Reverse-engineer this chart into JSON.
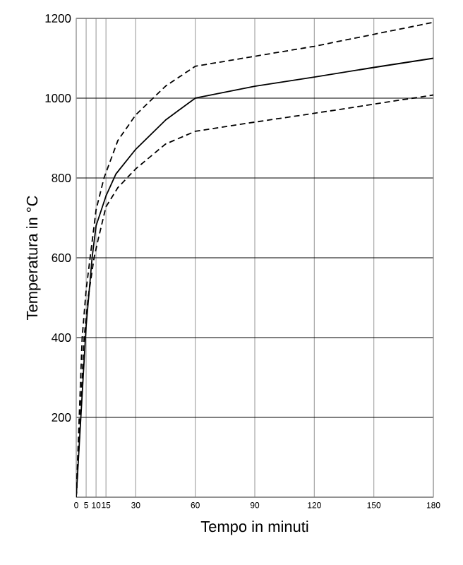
{
  "chart_data": {
    "type": "line",
    "xlabel": "Tempo in minuti",
    "ylabel": "Temperatura in °C",
    "xlim": [
      0,
      180
    ],
    "ylim": [
      0,
      1200
    ],
    "xticks": [
      0,
      5,
      10,
      15,
      30,
      60,
      90,
      120,
      150,
      180
    ],
    "yticks": [
      {
        "value": 0,
        "label": null
      },
      200,
      400,
      600,
      800,
      1000,
      1200
    ],
    "grid": true,
    "marker": "none",
    "series": [
      {
        "color": "#000000",
        "line_style": "solid",
        "x": [
          0,
          5,
          8,
          10,
          15,
          20,
          30,
          45,
          60,
          90,
          120,
          150,
          180
        ],
        "values": [
          0,
          430,
          600,
          680,
          755,
          810,
          872,
          945,
          1000,
          1030,
          1053,
          1077,
          1100
        ]
      },
      {
        "color": "#000000",
        "line_style": "dashed",
        "x": [
          0,
          3,
          5,
          8,
          10,
          14,
          21,
          30,
          45,
          60,
          90,
          120,
          150,
          180
        ],
        "values": [
          0,
          400,
          520,
          640,
          720,
          800,
          894,
          958,
          1030,
          1080,
          1105,
          1130,
          1160,
          1190
        ]
      },
      {
        "color": "#000000",
        "line_style": "dashed",
        "x": [
          0,
          4,
          6,
          9,
          11,
          15,
          21,
          30,
          45,
          60,
          90,
          120,
          150,
          180
        ],
        "values": [
          0,
          400,
          500,
          600,
          645,
          728,
          776,
          823,
          885,
          917,
          940,
          962,
          985,
          1008
        ]
      }
    ]
  }
}
